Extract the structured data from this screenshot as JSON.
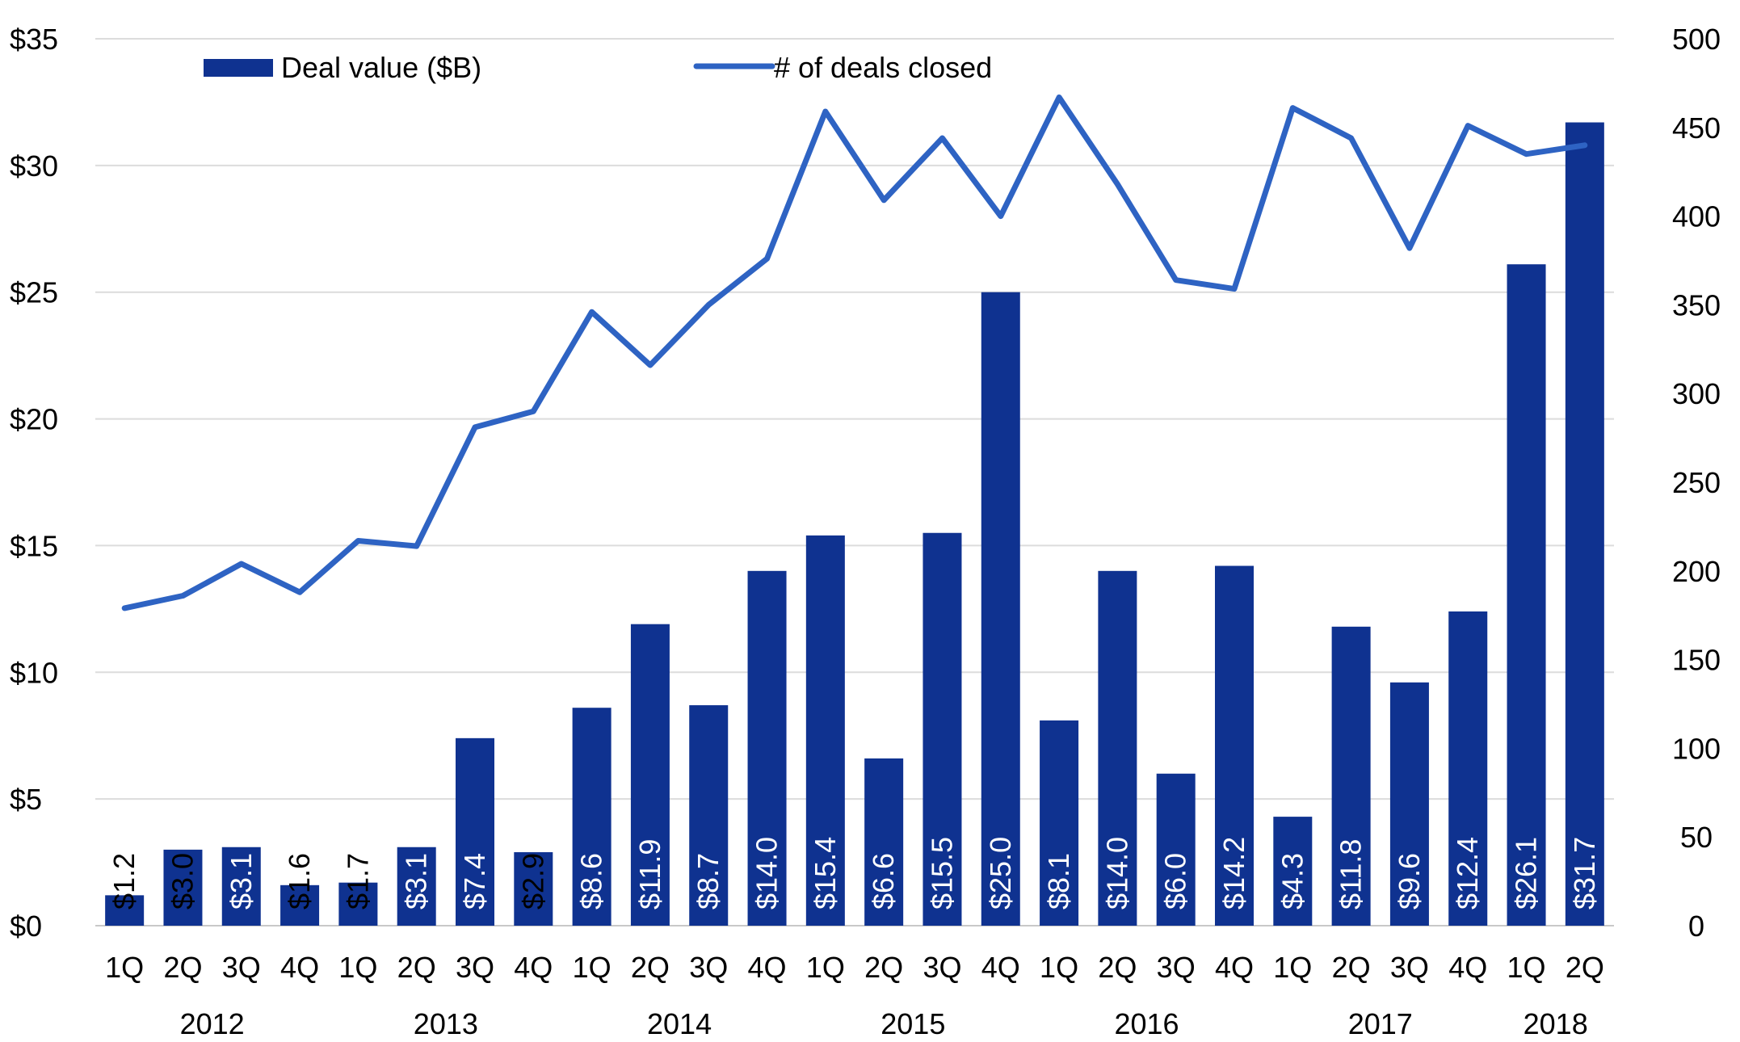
{
  "chart_data": {
    "type": "bar",
    "categories": [
      "1Q",
      "2Q",
      "3Q",
      "4Q",
      "1Q",
      "2Q",
      "3Q",
      "4Q",
      "1Q",
      "2Q",
      "3Q",
      "4Q",
      "1Q",
      "2Q",
      "3Q",
      "4Q",
      "1Q",
      "2Q",
      "3Q",
      "4Q",
      "1Q",
      "2Q",
      "3Q",
      "4Q",
      "1Q",
      "2Q"
    ],
    "year_groups": [
      {
        "label": "2012",
        "start": 0,
        "end": 3
      },
      {
        "label": "2013",
        "start": 4,
        "end": 7
      },
      {
        "label": "2014",
        "start": 8,
        "end": 11
      },
      {
        "label": "2015",
        "start": 12,
        "end": 15
      },
      {
        "label": "2016",
        "start": 16,
        "end": 19
      },
      {
        "label": "2017",
        "start": 20,
        "end": 23
      },
      {
        "label": "2018",
        "start": 24,
        "end": 25
      }
    ],
    "series": [
      {
        "name": "Deal value ($B)",
        "type": "bar",
        "axis": "left",
        "color": "#0f3290",
        "values": [
          1.2,
          3.0,
          3.1,
          1.6,
          1.7,
          3.1,
          7.4,
          2.9,
          8.6,
          11.9,
          8.7,
          14.0,
          15.4,
          6.6,
          15.5,
          25.0,
          8.1,
          14.0,
          6.0,
          14.2,
          4.3,
          11.8,
          9.6,
          12.4,
          26.1,
          31.7
        ],
        "labels": [
          "$1.2",
          "$3.0",
          "$3.1",
          "$1.6",
          "$1.7",
          "$3.1",
          "$7.4",
          "$2.9",
          "$8.6",
          "$11.9",
          "$8.7",
          "$14.0",
          "$15.4",
          "$6.6",
          "$15.5",
          "$25.0",
          "$8.1",
          "$14.0",
          "$6.0",
          "$14.2",
          "$4.3",
          "$11.8",
          "$9.6",
          "$12.4",
          "$26.1",
          "$31.7"
        ]
      },
      {
        "name": "# of deals closed",
        "type": "line",
        "axis": "right",
        "color": "#2e63c3",
        "values": [
          179,
          186,
          204,
          188,
          217,
          214,
          281,
          290,
          346,
          316,
          350,
          376,
          459,
          409,
          444,
          400,
          467,
          418,
          364,
          359,
          461,
          444,
          382,
          451,
          435,
          440
        ]
      }
    ],
    "y_left": {
      "ylim": [
        0,
        35
      ],
      "ticks": [
        0,
        5,
        10,
        15,
        20,
        25,
        30,
        35
      ],
      "tick_labels": [
        "$0",
        "$5",
        "$10",
        "$15",
        "$20",
        "$25",
        "$30",
        "$35"
      ]
    },
    "y_right": {
      "ylim": [
        0,
        500
      ],
      "ticks": [
        0,
        50,
        100,
        150,
        200,
        250,
        300,
        350,
        400,
        450,
        500
      ],
      "tick_labels": [
        "0",
        "50",
        "100",
        "150",
        "200",
        "250",
        "300",
        "350",
        "400",
        "450",
        "500"
      ]
    },
    "title": "",
    "xlabel": "",
    "ylabel": "",
    "grid": true,
    "legend": "top"
  }
}
